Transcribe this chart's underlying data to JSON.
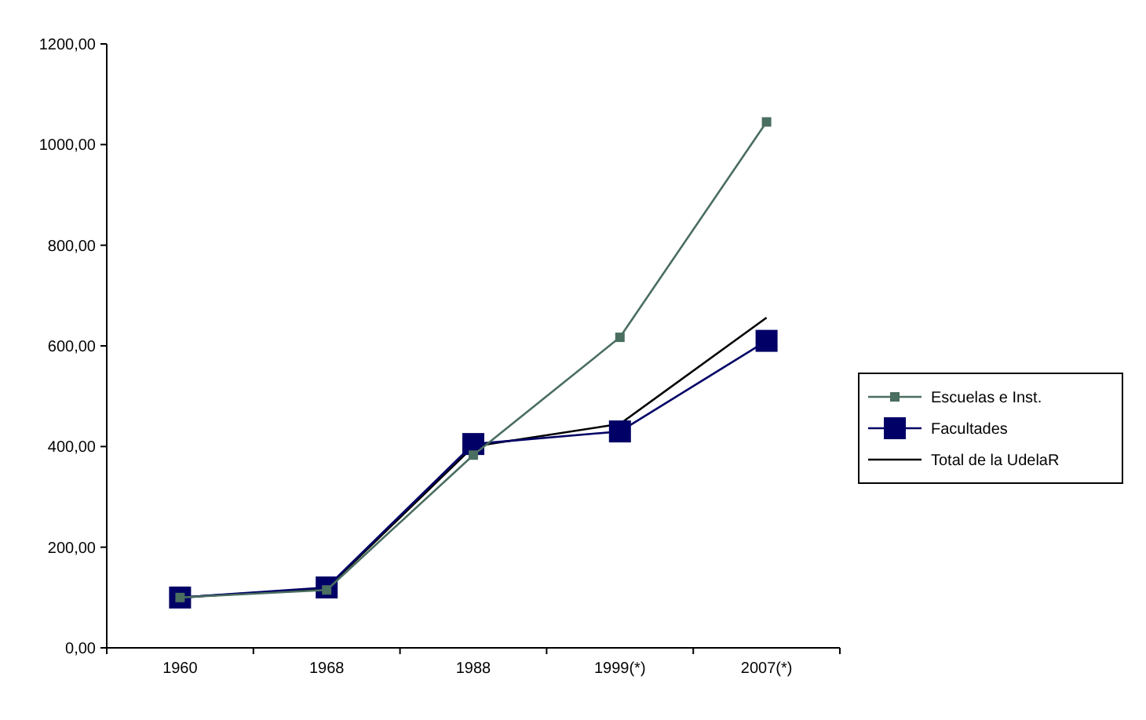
{
  "chart_data": {
    "type": "line",
    "categories": [
      "1960",
      "1968",
      "1988",
      "1999(*)",
      "2007(*)"
    ],
    "series": [
      {
        "name": "Escuelas e Inst.",
        "color": "#4a6e60",
        "marker": "square",
        "values": [
          100,
          115,
          383,
          617,
          1045
        ]
      },
      {
        "name": "Facultades",
        "color": "#000066",
        "marker": "square",
        "values": [
          100,
          120,
          405,
          430,
          610
        ]
      },
      {
        "name": "Total de la UdelaR",
        "color": "#000000",
        "marker": "none",
        "values": [
          100,
          118,
          400,
          445,
          656
        ]
      }
    ],
    "ylim": [
      0,
      1200
    ],
    "yticks": [
      {
        "value": 0,
        "label": "0,00"
      },
      {
        "value": 200,
        "label": "200,00"
      },
      {
        "value": 400,
        "label": "400,00"
      },
      {
        "value": 600,
        "label": "600,00"
      },
      {
        "value": 800,
        "label": "800,00"
      },
      {
        "value": 1000,
        "label": "1000,00"
      },
      {
        "value": 1200,
        "label": "1200,00"
      }
    ],
    "legend": "right",
    "grid": false
  }
}
